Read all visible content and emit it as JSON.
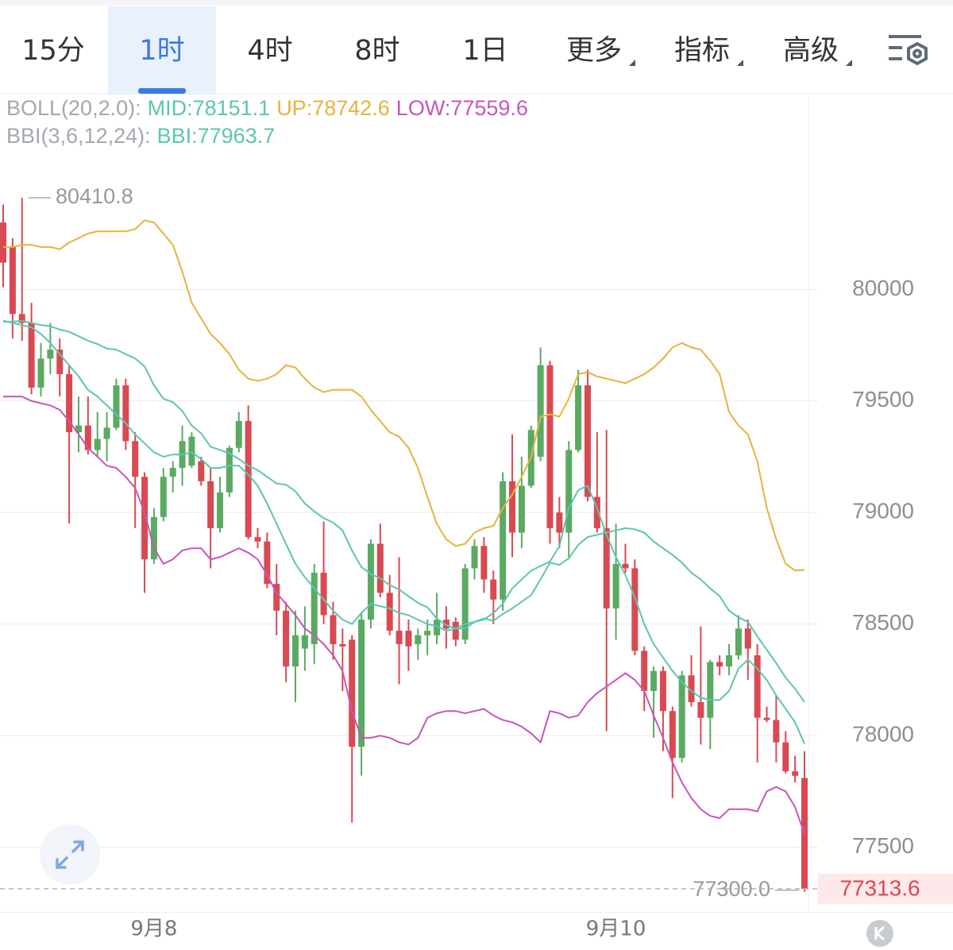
{
  "tabs": [
    {
      "label": "15分"
    },
    {
      "label": "1时"
    },
    {
      "label": "4时"
    },
    {
      "label": "8时"
    },
    {
      "label": "1日"
    },
    {
      "label": "更多",
      "dropdown": true
    },
    {
      "label": "指标",
      "dropdown": true
    },
    {
      "label": "高级",
      "dropdown": true
    }
  ],
  "active_tab_index": 1,
  "chart_data": {
    "type": "candlestick",
    "legend": [
      {
        "prefix": "BOLL(20,2.0):",
        "items": [
          {
            "text": "MID:78151.1",
            "color": "#5cc6ae"
          },
          {
            "text": "UP:78742.6",
            "color": "#e6b33c"
          },
          {
            "text": "LOW:77559.6",
            "color": "#c955b9"
          }
        ]
      },
      {
        "prefix": "BBI(3,6,12,24):",
        "items": [
          {
            "text": "BBI:77963.7",
            "color": "#5cc6ae"
          }
        ]
      }
    ],
    "up_color": "#5aaa62",
    "down_color": "#d84a52",
    "categories": [
      null,
      null,
      null,
      null,
      null,
      null,
      null,
      null,
      null,
      null,
      null,
      null,
      null,
      null,
      null,
      null,
      "9月8",
      null,
      null,
      null,
      null,
      null,
      null,
      null,
      null,
      null,
      null,
      null,
      null,
      null,
      null,
      null,
      null,
      null,
      null,
      null,
      null,
      null,
      null,
      null,
      null,
      null,
      null,
      null,
      null,
      null,
      null,
      null,
      null,
      null,
      null,
      null,
      null,
      null,
      null,
      null,
      null,
      null,
      null,
      null,
      null,
      null,
      null,
      null,
      null,
      "9月10",
      null,
      null,
      null,
      null,
      null,
      null,
      null,
      null,
      null,
      null,
      null,
      null,
      null,
      null,
      null,
      null,
      null,
      null,
      null,
      null
    ],
    "open": [
      80300,
      80190,
      79890,
      79850,
      79560,
      79690,
      79730,
      79620,
      79360,
      79390,
      79280,
      79330,
      79380,
      79570,
      79320,
      79160,
      78790,
      78980,
      79160,
      79200,
      79210,
      79230,
      79140,
      78930,
      79090,
      79290,
      79410,
      78890,
      78870,
      78680,
      78560,
      78310,
      78390,
      78410,
      78730,
      78540,
      78410,
      78430,
      77950,
      78520,
      78860,
      78640,
      78470,
      78470,
      78410,
      78450,
      78450,
      78520,
      78510,
      78430,
      78750,
      78850,
      78700,
      78610,
      79140,
      78910,
      79120,
      79250,
      79660,
      79000,
      78910,
      79280,
      79570,
      79070,
      78930,
      78570,
      78770,
      78750,
      78380,
      78200,
      78290,
      78110,
      77900,
      78270,
      78150,
      78080,
      78330,
      78310,
      78360,
      78480,
      78360,
      78080,
      78070,
      77970,
      77840,
      77810
    ],
    "close": [
      80120,
      79890,
      79850,
      79560,
      79690,
      79730,
      79620,
      79360,
      79390,
      79280,
      79330,
      79380,
      79570,
      79320,
      79160,
      78790,
      78980,
      79160,
      79200,
      79320,
      79340,
      79140,
      78930,
      79090,
      79290,
      79410,
      78890,
      78870,
      78680,
      78560,
      78310,
      78450,
      78450,
      78730,
      78540,
      78410,
      78400,
      77950,
      78520,
      78860,
      78640,
      78470,
      78410,
      78400,
      78450,
      78470,
      78520,
      78480,
      78430,
      78750,
      78850,
      78700,
      78610,
      79140,
      78910,
      79120,
      79370,
      79660,
      78930,
      78910,
      79280,
      79570,
      79070,
      78930,
      78570,
      78770,
      78750,
      78380,
      78200,
      78290,
      78110,
      77900,
      78270,
      78150,
      78080,
      78330,
      78310,
      78360,
      78480,
      78390,
      78080,
      78070,
      77970,
      77840,
      77820,
      77313.6
    ],
    "high": [
      80380,
      80230,
      80410.8,
      79940,
      79760,
      79850,
      79780,
      79660,
      79520,
      79520,
      79450,
      79450,
      79600,
      79600,
      79360,
      79180,
      79020,
      79200,
      79230,
      79390,
      79360,
      79250,
      79200,
      79160,
      79300,
      79450,
      79480,
      78930,
      78910,
      78770,
      78600,
      78560,
      78580,
      78770,
      78960,
      78600,
      78480,
      78450,
      78550,
      78880,
      78950,
      78720,
      78800,
      78520,
      78480,
      78520,
      78640,
      78580,
      78530,
      78770,
      78880,
      78890,
      78740,
      79180,
      79350,
      79250,
      79390,
      79740,
      79680,
      79070,
      79320,
      79640,
      79640,
      79360,
      79370,
      78950,
      78860,
      78790,
      78400,
      78310,
      78310,
      78130,
      78290,
      78360,
      78490,
      78340,
      78360,
      78410,
      78540,
      78520,
      78410,
      78130,
      78180,
      78020,
      77910,
      77930
    ],
    "low": [
      80010,
      79780,
      79770,
      79530,
      79520,
      79620,
      79520,
      78950,
      79270,
      79260,
      79250,
      79230,
      79370,
      79280,
      78930,
      78640,
      78770,
      78960,
      79090,
      79120,
      79200,
      79120,
      78750,
      78910,
      79070,
      79270,
      78880,
      78840,
      78660,
      78450,
      78240,
      78150,
      78290,
      78320,
      78500,
      78340,
      78200,
      77610,
      77820,
      78480,
      78620,
      78450,
      78230,
      78290,
      78340,
      78360,
      78410,
      78390,
      78400,
      78410,
      78700,
      78640,
      78500,
      78560,
      78800,
      78840,
      79110,
      79230,
      78860,
      78840,
      78790,
      79270,
      79050,
      78910,
      78020,
      78430,
      78730,
      78360,
      78110,
      77990,
      77930,
      77720,
      77880,
      78130,
      77960,
      77940,
      78270,
      78270,
      78340,
      78250,
      77880,
      78060,
      77880,
      77830,
      77790,
      77300
    ],
    "overlays": [
      {
        "color": "#5cc6ae",
        "values": [
          79855,
          79855,
          79860,
          79850,
          79840,
          79835,
          79820,
          79810,
          79790,
          79770,
          79755,
          79735,
          79730,
          79710,
          79690,
          79655,
          79570,
          79510,
          79495,
          79455,
          79390,
          79355,
          79295,
          79280,
          79265,
          79240,
          79210,
          79190,
          79160,
          79130,
          79125,
          79095,
          79040,
          79005,
          78975,
          78955,
          78920,
          78830,
          78755,
          78725,
          78705,
          78675,
          78655,
          78625,
          78595,
          78575,
          78525,
          78495,
          78480,
          78480,
          78510,
          78525,
          78515,
          78545,
          78570,
          78600,
          78630,
          78700,
          78775,
          78765,
          78795,
          78855,
          78890,
          78900,
          78910,
          78920,
          78930,
          78925,
          78910,
          78870,
          78840,
          78810,
          78775,
          78730,
          78700,
          78660,
          78625,
          78560,
          78530,
          78510,
          78445,
          78385,
          78325,
          78260,
          78210,
          78151.1
        ]
      },
      {
        "color": "#e6b33c",
        "values": [
          80190,
          80190,
          80200,
          80200,
          80190,
          80190,
          80180,
          80210,
          80230,
          80250,
          80260,
          80260,
          80260,
          80260,
          80270,
          80310,
          80300,
          80250,
          80200,
          80080,
          79940,
          79870,
          79800,
          79760,
          79710,
          79640,
          79600,
          79590,
          79600,
          79620,
          79660,
          79650,
          79600,
          79560,
          79540,
          79550,
          79550,
          79550,
          79520,
          79460,
          79410,
          79360,
          79340,
          79290,
          79200,
          79070,
          78950,
          78880,
          78850,
          78860,
          78910,
          78930,
          78940,
          79020,
          79080,
          79160,
          79250,
          79430,
          79440,
          79430,
          79510,
          79620,
          79630,
          79610,
          79600,
          79590,
          79580,
          79600,
          79620,
          79650,
          79690,
          79740,
          79760,
          79740,
          79730,
          79680,
          79620,
          79450,
          79390,
          79350,
          79230,
          79020,
          78880,
          78770,
          78740,
          78742.6
        ]
      },
      {
        "color": "#c955b9",
        "values": [
          79520,
          79520,
          79520,
          79500,
          79490,
          79480,
          79460,
          79410,
          79350,
          79290,
          79250,
          79210,
          79200,
          79160,
          79110,
          79000,
          78840,
          78770,
          78790,
          78830,
          78840,
          78840,
          78790,
          78800,
          78820,
          78840,
          78820,
          78790,
          78720,
          78640,
          78590,
          78540,
          78480,
          78450,
          78410,
          78360,
          78290,
          78110,
          77990,
          77990,
          78000,
          77990,
          77970,
          77960,
          77990,
          78080,
          78100,
          78110,
          78110,
          78100,
          78110,
          78120,
          78090,
          78070,
          78060,
          78040,
          78010,
          77970,
          78110,
          78100,
          78080,
          78090,
          78150,
          78190,
          78220,
          78250,
          78280,
          78250,
          78200,
          78090,
          77990,
          77880,
          77790,
          77720,
          77670,
          77640,
          77630,
          77670,
          77670,
          77670,
          77660,
          77750,
          77770,
          77750,
          77680,
          77559.6
        ]
      },
      {
        "color": "#5cc6ae",
        "values": [
          79860,
          79850,
          79840,
          79830,
          79800,
          79760,
          79710,
          79660,
          79610,
          79550,
          79520,
          79480,
          79440,
          79400,
          79350,
          79310,
          79270,
          79250,
          79260,
          79260,
          79270,
          79240,
          79200,
          79200,
          79210,
          79210,
          79170,
          79120,
          79040,
          78950,
          78860,
          78770,
          78710,
          78660,
          78610,
          78560,
          78520,
          78500,
          78550,
          78590,
          78580,
          78570,
          78550,
          78540,
          78520,
          78500,
          78490,
          78470,
          78480,
          78500,
          78510,
          78520,
          78550,
          78590,
          78660,
          78700,
          78740,
          78760,
          78780,
          78850,
          79020,
          79100,
          79120,
          79020,
          78900,
          78800,
          78720,
          78620,
          78500,
          78410,
          78350,
          78290,
          78240,
          78200,
          78170,
          78160,
          78160,
          78200,
          78300,
          78340,
          78300,
          78250,
          78180,
          78120,
          78060,
          77963.7
        ]
      }
    ],
    "high_marker": 80410.8,
    "low_marker": {
      "value": 77300,
      "label": "77300.0"
    },
    "last_price": 77313.6,
    "ylim": [
      77210,
      80870
    ],
    "yticks": [
      77500,
      78000,
      78500,
      79000,
      79500,
      80000
    ],
    "grid": true
  }
}
